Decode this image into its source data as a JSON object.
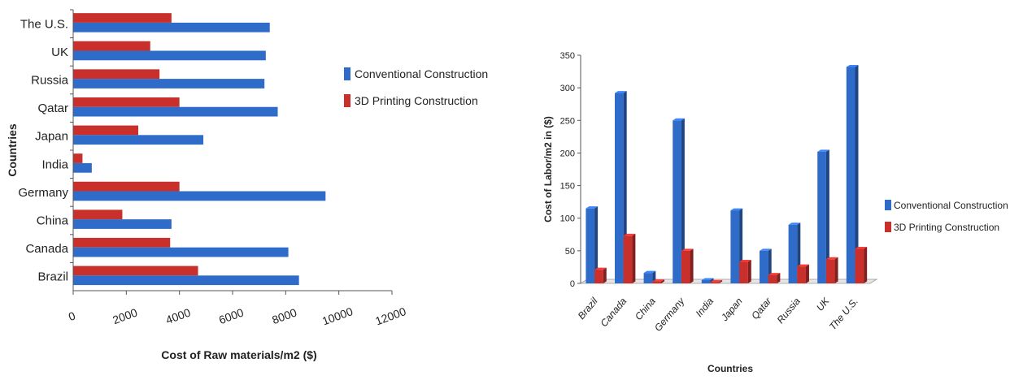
{
  "chart_data": [
    {
      "type": "bar",
      "orientation": "horizontal",
      "title": "",
      "xlabel": "Cost of Raw materials/m2 ($)",
      "ylabel": "Countries",
      "categories": [
        "Brazil",
        "Canada",
        "China",
        "Germany",
        "India",
        "Japan",
        "Qatar",
        "Russia",
        "UK",
        "The U.S."
      ],
      "series": [
        {
          "name": "Conventional Construction",
          "color": "#2f6bc9",
          "values": [
            8500,
            8100,
            3700,
            9500,
            700,
            4900,
            7700,
            7200,
            7250,
            7400
          ]
        },
        {
          "name": "3D Printing Construction",
          "color": "#c9302c",
          "values": [
            4700,
            3650,
            1850,
            4000,
            350,
            2450,
            4000,
            3250,
            2900,
            3700
          ]
        }
      ],
      "xlim": [
        0,
        12000
      ],
      "xticks": [
        "0",
        "2000",
        "4000",
        "6000",
        "8000",
        "10000",
        "12000"
      ],
      "legend": "right",
      "grid": false
    },
    {
      "type": "bar",
      "orientation": "vertical",
      "title": "",
      "xlabel": "Countries",
      "ylabel": "Cost of Labor/m2 in ($)",
      "categories": [
        "Brazil",
        "Canada",
        "China",
        "Germany",
        "India",
        "Japan",
        "Qatar",
        "Russia",
        "UK",
        "The U.S."
      ],
      "series": [
        {
          "name": "Conventional Construction",
          "color": "#2f6bc9",
          "values": [
            115,
            292,
            16,
            250,
            5,
            112,
            50,
            90,
            202,
            332
          ]
        },
        {
          "name": "3D Printing Construction",
          "color": "#c9302c",
          "values": [
            21,
            73,
            3,
            50,
            2,
            33,
            13,
            26,
            37,
            53
          ]
        }
      ],
      "ylim": [
        0,
        350
      ],
      "yticks": [
        "0",
        "50",
        "100",
        "150",
        "200",
        "250",
        "300",
        "350"
      ],
      "legend": "right",
      "grid": false
    }
  ]
}
